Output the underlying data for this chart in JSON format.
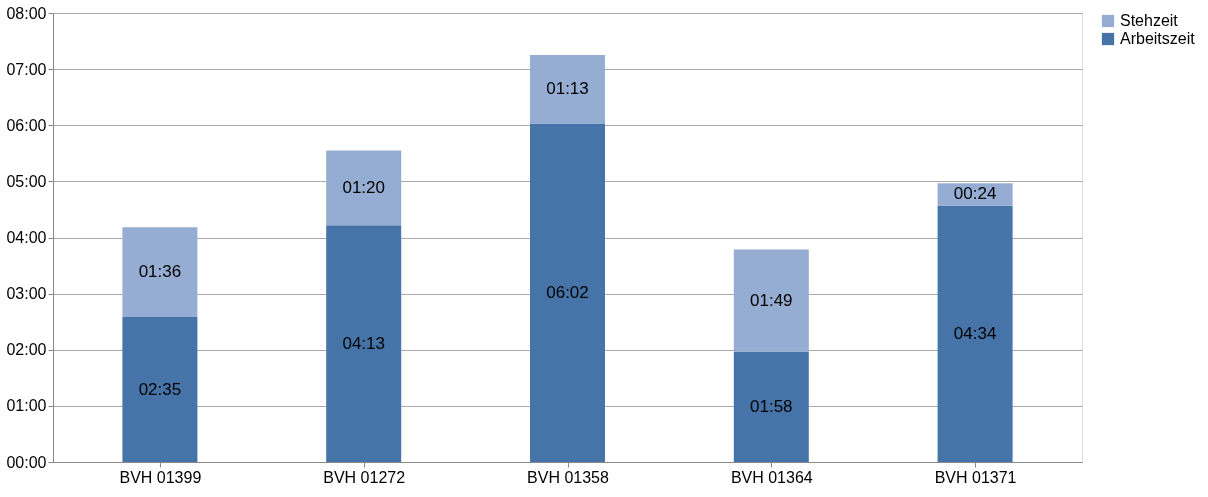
{
  "chart_data": {
    "type": "bar",
    "stacked": true,
    "categories": [
      "BVH 01399",
      "BVH 01272",
      "BVH 01358",
      "BVH 01364",
      "BVH 01371"
    ],
    "series": [
      {
        "name": "Arbeitszeit",
        "color": "#4674a8",
        "values": [
          2.583,
          4.217,
          6.033,
          1.967,
          4.567
        ],
        "value_labels": [
          "02:35",
          "04:13",
          "06:02",
          "01:58",
          "04:34"
        ]
      },
      {
        "name": "Stehzeit",
        "color": "#95acd3",
        "values": [
          1.6,
          1.333,
          1.217,
          1.817,
          0.4
        ],
        "value_labels": [
          "01:36",
          "01:20",
          "01:13",
          "01:49",
          "00:24"
        ]
      }
    ],
    "ylim": [
      0,
      8
    ],
    "yticks": [
      {
        "value": 0,
        "label": "00:00"
      },
      {
        "value": 1,
        "label": "01:00"
      },
      {
        "value": 2,
        "label": "02:00"
      },
      {
        "value": 3,
        "label": "03:00"
      },
      {
        "value": 4,
        "label": "04:00"
      },
      {
        "value": 5,
        "label": "05:00"
      },
      {
        "value": 6,
        "label": "06:00"
      },
      {
        "value": 7,
        "label": "07:00"
      },
      {
        "value": 8,
        "label": "08:00"
      }
    ],
    "grid": "y",
    "legend": "right"
  }
}
